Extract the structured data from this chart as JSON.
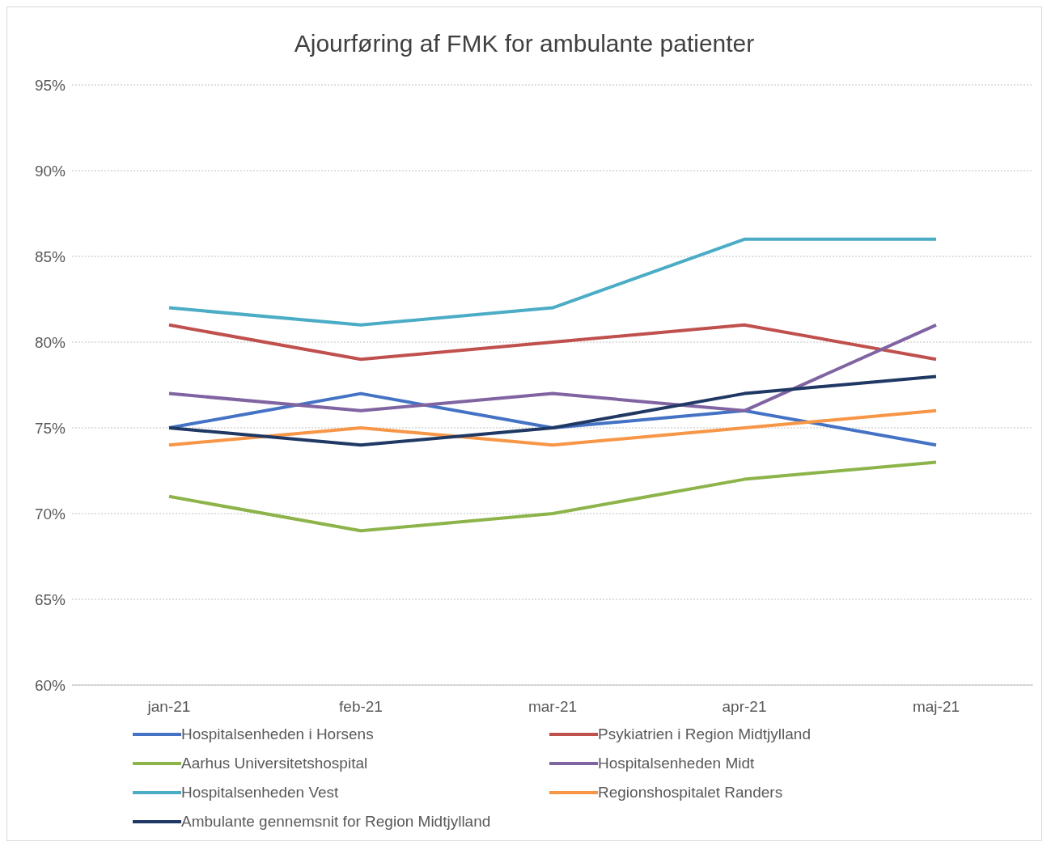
{
  "chart_data": {
    "type": "line",
    "title": "Ajourføring af FMK for ambulante patienter",
    "categories": [
      "jan-21",
      "feb-21",
      "mar-21",
      "apr-21",
      "maj-21"
    ],
    "series": [
      {
        "name": "Hospitalsenheden i Horsens",
        "color": "#4472c4",
        "values": [
          75,
          77,
          75,
          76,
          74
        ]
      },
      {
        "name": "Psykiatrien i Region Midtjylland",
        "color": "#c0504d",
        "values": [
          81,
          79,
          80,
          81,
          79
        ]
      },
      {
        "name": "Aarhus Universitetshospital",
        "color": "#8db44a",
        "values": [
          71,
          69,
          70,
          72,
          73
        ]
      },
      {
        "name": "Hospitalsenheden Midt",
        "color": "#8064a2",
        "values": [
          77,
          76,
          77,
          76,
          81
        ]
      },
      {
        "name": "Hospitalsenheden Vest",
        "color": "#4bacc6",
        "values": [
          82,
          81,
          82,
          86,
          86
        ]
      },
      {
        "name": "Regionshospitalet Randers",
        "color": "#f79646",
        "values": [
          74,
          75,
          74,
          75,
          76
        ]
      },
      {
        "name": "Ambulante gennemsnit for Region Midtjylland",
        "color": "#1f3864",
        "values": [
          75,
          74,
          75,
          77,
          78
        ]
      }
    ],
    "ylim": [
      60,
      95
    ],
    "yticks": [
      {
        "value": 60,
        "label": "60%"
      },
      {
        "value": 65,
        "label": "65%"
      },
      {
        "value": 70,
        "label": "70%"
      },
      {
        "value": 75,
        "label": "75%"
      },
      {
        "value": 80,
        "label": "80%"
      },
      {
        "value": 85,
        "label": "85%"
      },
      {
        "value": 90,
        "label": "90%"
      },
      {
        "value": 95,
        "label": "95%"
      }
    ],
    "grid": "y",
    "legend": "bottom",
    "marker": "none",
    "line_style": "solid"
  }
}
